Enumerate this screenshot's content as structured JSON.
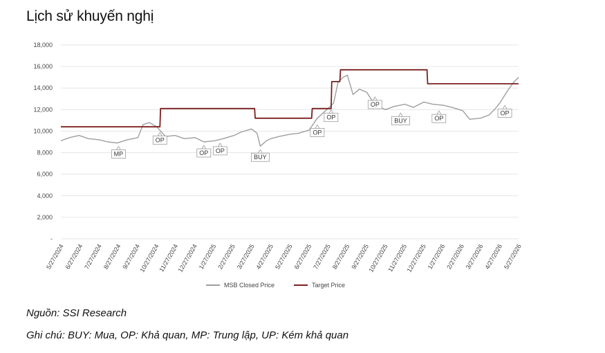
{
  "title": "Lịch sử khuyến nghị",
  "source": "Nguồn: SSI Research",
  "note": "Ghi chú: BUY: Mua, OP: Khả quan, MP: Trung lập, UP: Kém khả quan",
  "colors": {
    "price": "#9e9e9e",
    "target": "#7b1f1f",
    "grid": "#e6e6e6"
  },
  "chart_data": {
    "type": "line",
    "title": "",
    "xlabel": "",
    "ylabel": "",
    "ylim": [
      0,
      18000
    ],
    "yticks": [
      0,
      2000,
      4000,
      6000,
      8000,
      10000,
      12000,
      14000,
      16000,
      18000
    ],
    "ytick_labels": [
      "-",
      "2,000",
      "4,000",
      "6,000",
      "8,000",
      "10,000",
      "12,000",
      "14,000",
      "16,000",
      "18,000"
    ],
    "x_start": "5/27/2024",
    "x_end": "5/27/2026",
    "xtick_labels": [
      "5/27/2024",
      "6/27/2024",
      "7/27/2024",
      "8/27/2024",
      "9/27/2024",
      "10/27/2024",
      "11/27/2024",
      "12/27/2024",
      "1/27/2025",
      "2/27/2025",
      "3/27/2025",
      "4/27/2025",
      "5/27/2025",
      "6/27/2025",
      "7/27/2025",
      "8/27/2025",
      "9/27/2025",
      "10/27/2025",
      "11/27/2025",
      "12/27/2025",
      "1/27/2026",
      "2/27/2026",
      "3/27/2026",
      "4/27/2026",
      "5/27/2026"
    ],
    "grid": true,
    "legend_position": "bottom",
    "series": [
      {
        "name": "MSB Closed Price",
        "x": [
          "5/27/2024",
          "6/10/2024",
          "6/25/2024",
          "7/10/2024",
          "7/27/2024",
          "8/10/2024",
          "8/25/2024",
          "9/10/2024",
          "9/27/2024",
          "10/5/2024",
          "10/15/2024",
          "10/27/2024",
          "11/10/2024",
          "11/25/2024",
          "12/10/2024",
          "12/27/2024",
          "1/10/2025",
          "1/27/2025",
          "2/10/2025",
          "2/27/2025",
          "3/10/2025",
          "3/27/2025",
          "4/5/2025",
          "4/10/2025",
          "4/20/2025",
          "4/27/2025",
          "5/10/2025",
          "5/27/2025",
          "6/10/2025",
          "6/27/2025",
          "7/10/2025",
          "7/27/2025",
          "8/5/2025",
          "8/12/2025",
          "8/20/2025",
          "8/27/2025",
          "9/5/2025",
          "9/15/2025",
          "9/27/2025",
          "10/10/2025",
          "10/27/2025",
          "11/10/2025",
          "11/27/2025",
          "12/10/2025",
          "12/27/2025",
          "1/10/2026",
          "1/27/2026",
          "2/10/2026",
          "2/27/2026",
          "3/10/2026",
          "3/27/2026",
          "4/10/2026",
          "4/20/2026",
          "4/27/2026",
          "5/10/2026",
          "5/20/2026",
          "5/27/2026"
        ],
        "values": [
          9100,
          9400,
          9600,
          9300,
          9200,
          9000,
          8900,
          9200,
          9400,
          10600,
          10800,
          10400,
          9500,
          9600,
          9300,
          9400,
          9000,
          9100,
          9300,
          9600,
          9900,
          10200,
          9800,
          8600,
          9100,
          9300,
          9500,
          9700,
          9800,
          10100,
          11200,
          12100,
          12600,
          14500,
          15000,
          15200,
          13400,
          13900,
          13600,
          12400,
          12000,
          12300,
          12500,
          12200,
          12700,
          12500,
          12400,
          12200,
          11900,
          11100,
          11200,
          11500,
          12100,
          12600,
          13800,
          14600,
          15000
        ]
      },
      {
        "name": "Target Price",
        "x": [
          "5/27/2024",
          "11/1/2024",
          "11/2/2024",
          "4/1/2025",
          "4/2/2025",
          "7/1/2025",
          "7/2/2025",
          "8/1/2025",
          "8/2/2025",
          "8/15/2025",
          "8/16/2025",
          "1/1/2026",
          "1/2/2026",
          "5/27/2026"
        ],
        "values": [
          10400,
          10400,
          12100,
          12100,
          11200,
          11200,
          12100,
          12100,
          14600,
          14600,
          15700,
          15700,
          14400,
          14400
        ]
      }
    ],
    "annotations": [
      {
        "label": "MP",
        "date": "8/27/2024",
        "price": 8900
      },
      {
        "label": "OP",
        "date": "11/1/2024",
        "price": 10200
      },
      {
        "label": "OP",
        "date": "1/10/2025",
        "price": 9000
      },
      {
        "label": "OP",
        "date": "2/5/2025",
        "price": 9200
      },
      {
        "label": "BUY",
        "date": "4/10/2025",
        "price": 8600
      },
      {
        "label": "OP",
        "date": "7/10/2025",
        "price": 10900
      },
      {
        "label": "OP",
        "date": "8/1/2025",
        "price": 12300
      },
      {
        "label": "OP",
        "date": "10/10/2025",
        "price": 13500
      },
      {
        "label": "BUY",
        "date": "11/20/2025",
        "price": 12000
      },
      {
        "label": "OP",
        "date": "1/20/2026",
        "price": 12200
      },
      {
        "label": "OP",
        "date": "5/5/2026",
        "price": 12700
      }
    ]
  }
}
